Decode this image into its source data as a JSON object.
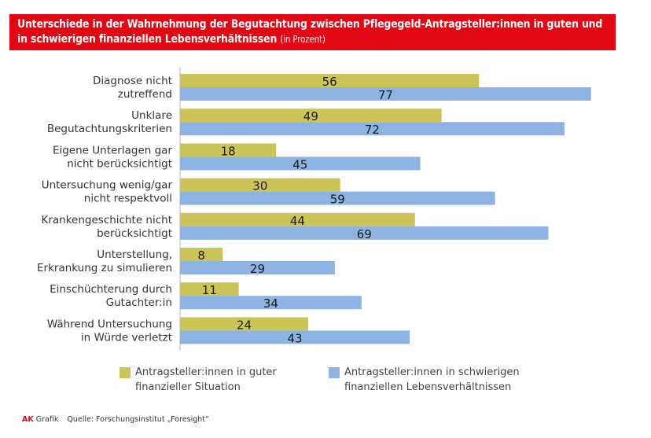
{
  "header": {
    "title_line1": "Unterschiede in der Wahrnehmung der Begutachtung zwischen Pflegegeld-Antragsteller:innen in guten und",
    "title_line2": "in schwierigen finanziellen Lebensverhältnissen",
    "title_unit": "(in Prozent)"
  },
  "colors": {
    "title_bg": "#e30613",
    "series_good": "#cbc558",
    "series_difficult": "#8db3e2",
    "axis": "#cfcfcf"
  },
  "chart_data": {
    "type": "bar",
    "orientation": "horizontal",
    "title": "Unterschiede in der Wahrnehmung der Begutachtung zwischen Pflegegeld-Antragsteller:innen in guten und in schwierigen finanziellen Lebensverhältnissen (in Prozent)",
    "xlabel": "",
    "ylabel": "",
    "xlim": [
      0,
      80
    ],
    "grid": false,
    "legend_position": "bottom",
    "categories": [
      [
        "Diagnose nicht",
        "zutreffend"
      ],
      [
        "Unklare",
        "Begutachtungskriterien"
      ],
      [
        "Eigene Unterlagen gar",
        "nicht berücksichtigt"
      ],
      [
        "Untersuchung wenig/gar",
        "nicht respektvoll"
      ],
      [
        "Krankengeschichte nicht",
        "berücksichtigt"
      ],
      [
        "Unterstellung,",
        "Erkrankung zu simulieren"
      ],
      [
        "Einschüchterung durch",
        "Gutachter:in"
      ],
      [
        "Während Untersuchung",
        "in Würde verletzt"
      ]
    ],
    "series": [
      {
        "name": "Antragsteller:innen in guter finanzieller Situation",
        "legend_lines": [
          "Antragsteller:innen in guter",
          "finanzieller Situation"
        ],
        "values": [
          56,
          49,
          18,
          30,
          44,
          8,
          11,
          24
        ]
      },
      {
        "name": "Antragsteller:innen in schwierigen finanziellen Lebensverhältnissen",
        "legend_lines": [
          "Antragsteller:innen in schwierigen",
          "finanziellen Lebensverhältnissen"
        ],
        "values": [
          77,
          72,
          45,
          59,
          69,
          29,
          34,
          43
        ]
      }
    ]
  },
  "footer": {
    "brand": "AK",
    "brand_suffix": "Grafik",
    "source": "Quelle: Forschungsinstitut „Foresight“"
  }
}
